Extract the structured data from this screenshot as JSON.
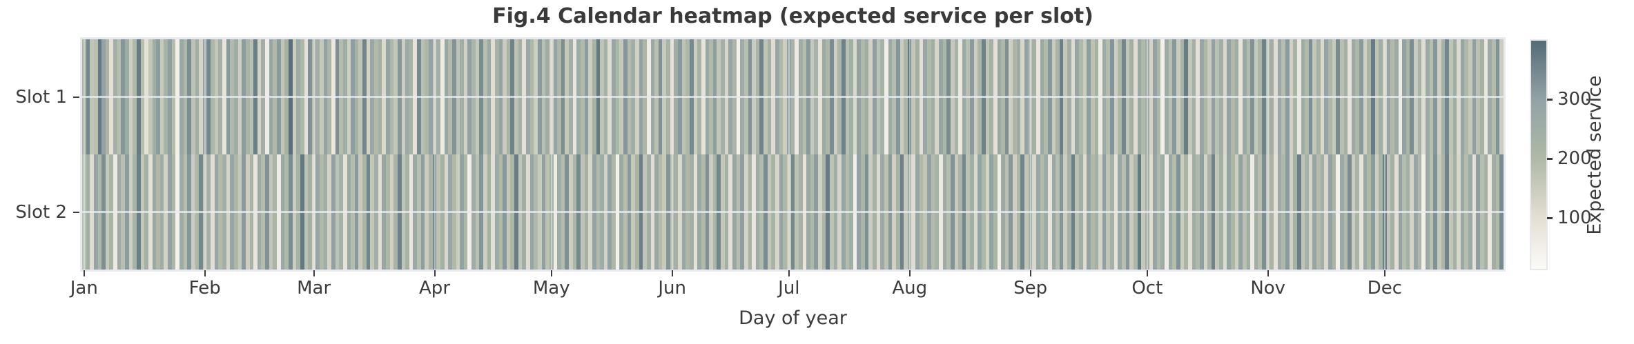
{
  "title": "Fig.4 Calendar heatmap (expected service per slot)",
  "axes": {
    "x_label": "Day of year",
    "y_ticks": [
      "Slot 1",
      "Slot 2"
    ],
    "x_ticks": [
      {
        "label": "Jan",
        "start_day": 1
      },
      {
        "label": "Feb",
        "start_day": 32
      },
      {
        "label": "Mar",
        "start_day": 60
      },
      {
        "label": "Apr",
        "start_day": 91
      },
      {
        "label": "May",
        "start_day": 121
      },
      {
        "label": "Jun",
        "start_day": 152
      },
      {
        "label": "Jul",
        "start_day": 182
      },
      {
        "label": "Aug",
        "start_day": 213
      },
      {
        "label": "Sep",
        "start_day": 244
      },
      {
        "label": "Oct",
        "start_day": 274
      },
      {
        "label": "Nov",
        "start_day": 305
      },
      {
        "label": "Dec",
        "start_day": 335
      }
    ]
  },
  "colorbar": {
    "label": "Expected service",
    "ticks": [
      100,
      200,
      300
    ],
    "vmin": 14,
    "vmax": 399
  },
  "chart_data": {
    "type": "heatmap",
    "title": "Fig.4 Calendar heatmap (expected service per slot)",
    "xlabel": "Day of year",
    "x_range": [
      1,
      365
    ],
    "value_range": [
      14,
      399
    ],
    "grid": true,
    "legend_position": "right-colorbar",
    "rows": [
      "Slot 1",
      "Slot 2"
    ],
    "color_stops": [
      {
        "value": 14,
        "color": "#fcfbf8"
      },
      {
        "value": 100,
        "color": "#e4dfd4"
      },
      {
        "value": 200,
        "color": "#afb9a7"
      },
      {
        "value": 300,
        "color": "#92a2a5"
      },
      {
        "value": 399,
        "color": "#546c77"
      }
    ],
    "series": [
      {
        "name": "Slot 1",
        "values": [
          212,
          348,
          167,
          181,
          374,
          298,
          215,
          96,
          240,
          183,
          322,
          258,
          144,
          201,
          371,
          189,
          95,
          166,
          247,
          310,
          155,
          228,
          304,
          189,
          47,
          268,
          203,
          336,
          174,
          245,
          128,
          292,
          351,
          208,
          163,
          239,
          86,
          317,
          196,
          254,
          142,
          309,
          221,
          178,
          365,
          133,
          247,
          58,
          284,
          199,
          312,
          168,
          232,
          389,
          147,
          261,
          205,
          94,
          329,
          186,
          243,
          157,
          298,
          211,
          76,
          334,
          190,
          256,
          143,
          307,
          225,
          169,
          352,
          132,
          279,
          197,
          241,
          115,
          288,
          206,
          163,
          318,
          148,
          262,
          231,
          89,
          344,
          178,
          209,
          296,
          154,
          237,
          66,
          281,
          193,
          325,
          172,
          248,
          136,
          302,
          219,
          158,
          341,
          187,
          264,
          105,
          229,
          293,
          151,
          216,
          357,
          174,
          238,
          98,
          271,
          203,
          146,
          312,
          184,
          252,
          127,
          289,
          204,
          336,
          161,
          243,
          78,
          257,
          198,
          309,
          145,
          222,
          374,
          169,
          235,
          111,
          283,
          207,
          158,
          321,
          192,
          246,
          139,
          297,
          214,
          59,
          268,
          181,
          330,
          156,
          226,
          101,
          254,
          317,
          175,
          208,
          346,
          148,
          232,
          87,
          276,
          195,
          308,
          163,
          241,
          122,
          287,
          211,
          44,
          259,
          184,
          326,
          152,
          218,
          353,
          170,
          236,
          108,
          279,
          201,
          144,
          294,
          223,
          66,
          251,
          187,
          315,
          159,
          228,
          92,
          264,
          206,
          338,
          141,
          217,
          361,
          178,
          245,
          118,
          290,
          199,
          253,
          135,
          307,
          172,
          231,
          54,
          266,
          188,
          322,
          150,
          212,
          377,
          164,
          240,
          103,
          275,
          195,
          249,
          128,
          286,
          209,
          341,
          157,
          224,
          71,
          262,
          183,
          313,
          146,
          219,
          356,
          168,
          237,
          96,
          272,
          204,
          331,
          139,
          214,
          257,
          124,
          299,
          181,
          235,
          82,
          268,
          196,
          318,
          153,
          221,
          364,
          160,
          243,
          113,
          284,
          202,
          147,
          308,
          176,
          229,
          63,
          256,
          191,
          324,
          142,
          213,
          349,
          166,
          238,
          107,
          277,
          198,
          252,
          131,
          295,
          210,
          48,
          263,
          185,
          316,
          149,
          225,
          368,
          162,
          234,
          99,
          281,
          205,
          154,
          302,
          178,
          246,
          120,
          288,
          197,
          251,
          85,
          269,
          193,
          327,
          158,
          216,
          359,
          171,
          242,
          104,
          274,
          189,
          311,
          137,
          223,
          73,
          258,
          202,
          335,
          165,
          230,
          117,
          293,
          207,
          156,
          343,
          182,
          239,
          91,
          267,
          200,
          314,
          143,
          218,
          371,
          173,
          244,
          125,
          282,
          194,
          255,
          61,
          298,
          211,
          337,
          151,
          227,
          109,
          265,
          186,
          319,
          140,
          235,
          352,
          167,
          248,
          114,
          286,
          203,
          159,
          305,
          179,
          233,
          77,
          261,
          192,
          328,
          147
        ]
      },
      {
        "name": "Slot 2",
        "values": [
          178,
          245,
          112,
          289,
          203,
          334,
          156,
          221,
          68,
          257,
          184,
          309,
          141,
          228,
          365,
          163,
          237,
          95,
          273,
          199,
          251,
          133,
          296,
          208,
          46,
          262,
          187,
          321,
          152,
          215,
          349,
          170,
          233,
          104,
          278,
          196,
          242,
          127,
          287,
          205,
          158,
          313,
          144,
          226,
          81,
          259,
          191,
          327,
          165,
          218,
          57,
          271,
          202,
          338,
          149,
          224,
          372,
          176,
          239,
          116,
          282,
          197,
          253,
          129,
          301,
          173,
          235,
          88,
          266,
          188,
          316,
          155,
          212,
          354,
          161,
          246,
          102,
          284,
          207,
          138,
          222,
          359,
          169,
          231,
          74,
          268,
          185,
          308,
          150,
          217,
          343,
          174,
          241,
          121,
          279,
          200,
          146,
          298,
          209,
          52,
          255,
          182,
          325,
          143,
          229,
          97,
          263,
          194,
          317,
          160,
          213,
          367,
          166,
          248,
          110,
          286,
          201,
          154,
          304,
          175,
          236,
          64,
          252,
          190,
          331,
          148,
          210,
          347,
          172,
          234,
          124,
          289,
          195,
          257,
          135,
          299,
          204,
          42,
          264,
          183,
          312,
          157,
          220,
          363,
          168,
          245,
          106,
          270,
          192,
          153,
          323,
          179,
          238,
          119,
          281,
          206,
          250,
          93,
          274,
          198,
          329,
          145,
          211,
          351,
          164,
          240,
          100,
          276,
          186,
          307,
          134,
          225,
          79,
          260,
          196,
          340,
          162,
          227,
          123,
          291,
          208,
          151,
          345,
          177,
          232,
          86,
          269,
          203,
          310,
          140,
          215,
          369,
          171,
          243,
          128,
          285,
          191,
          249,
          55,
          294,
          216,
          333,
          147,
          230,
          113,
          267,
          180,
          315,
          138,
          224,
          358,
          159,
          247,
          107,
          283,
          202,
          165,
          301,
          193,
          226,
          70,
          256,
          189,
          326,
          155,
          219,
          347,
          173,
          244,
          117,
          288,
          205,
          136,
          297,
          214,
          50,
          266,
          181,
          320,
          142,
          209,
          353,
          163,
          242,
          122,
          280,
          194,
          258,
          84,
          272,
          187,
          324,
          146,
          223,
          360,
          175,
          250,
          111,
          292,
          199,
          237,
          130,
          303,
          168,
          235,
          90,
          275,
          185,
          318,
          152,
          210,
          375,
          158,
          239,
          108,
          287,
          196,
          253,
          60,
          265,
          190,
          328,
          148,
          217,
          98,
          259,
          201,
          306,
          132,
          228,
          355,
          161,
          245,
          115,
          290,
          207,
          143,
          296,
          178,
          251,
          62,
          254,
          186,
          335,
          157,
          222,
          94,
          261,
          200,
          313,
          137,
          231,
          366,
          169,
          236,
          126,
          278,
          192,
          246,
          120,
          300,
          211,
          45,
          270,
          195,
          339,
          150,
          216,
          88,
          274,
          197,
          311,
          144,
          229,
          362,
          166,
          234,
          105,
          295,
          188,
          240,
          131,
          285,
          203,
          48,
          268,
          179,
          330,
          156,
          213,
          356,
          160,
          241,
          125,
          277,
          189,
          264,
          96,
          307,
          183,
          235,
          72,
          249,
          198,
          342
        ]
      }
    ]
  }
}
